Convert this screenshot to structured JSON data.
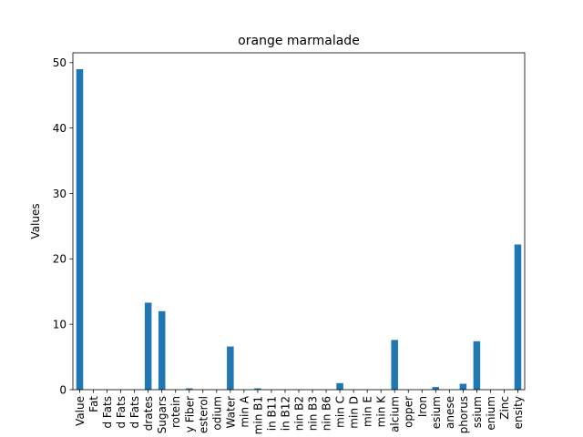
{
  "chart_data": {
    "type": "bar",
    "title": "orange marmalade",
    "xlabel": "",
    "ylabel": "Values",
    "ylim": [
      0,
      51.5
    ],
    "yticks": [
      0,
      10,
      20,
      30,
      40,
      50
    ],
    "bar_color": "#1f77b4",
    "grid": false,
    "legend": "none",
    "categories": [
      "Value",
      "Fat",
      "d Fats",
      "d Fats",
      "d Fats",
      "drates",
      "Sugars",
      "rotein",
      "y Fiber",
      "esterol",
      "odium",
      "Water",
      "min A",
      "min B1",
      "in B11",
      "in B12",
      "nin B2",
      "nin B3",
      "nin B6",
      "min C",
      "min D",
      "min E",
      "min K",
      "alcium",
      "opper",
      "Iron",
      "esium",
      "anese",
      "phorus",
      "ssium",
      "enium",
      "Zinc",
      "ensity"
    ],
    "values": [
      49.0,
      0.0,
      0.0,
      0.0,
      0.0,
      13.3,
      12.0,
      0.0,
      0.2,
      0.0,
      0.0,
      6.6,
      0.0,
      0.2,
      0.0,
      0.0,
      0.0,
      0.0,
      0.0,
      1.0,
      0.0,
      0.0,
      0.0,
      7.6,
      0.0,
      0.0,
      0.4,
      0.0,
      0.9,
      7.4,
      0.0,
      0.0,
      22.2
    ]
  }
}
